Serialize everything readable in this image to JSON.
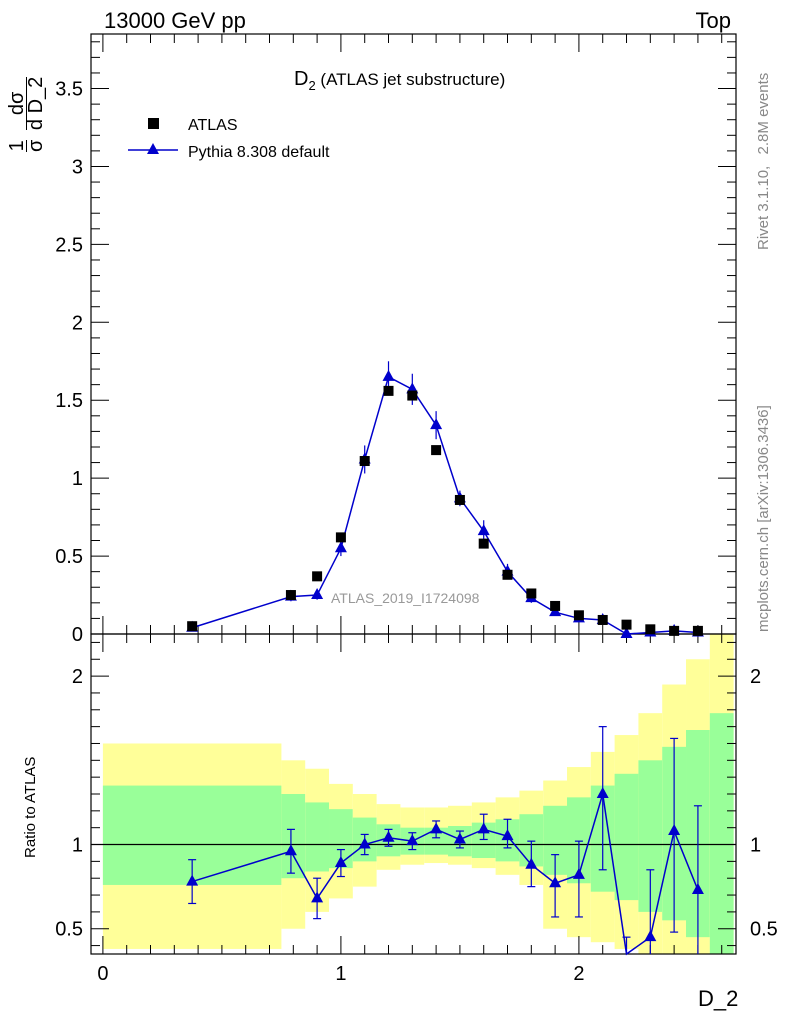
{
  "header": {
    "left": "13000 GeV pp",
    "right": "Top"
  },
  "side_labels": {
    "rivet": "Rivet 3.1.10,   2.8M events",
    "mcplots": "mcplots.cern.ch [arXiv:1306.3436]"
  },
  "chart_data": [
    {
      "type": "scatter",
      "panel": "main",
      "title_main": "D",
      "title_sub": "2",
      "title_rest": " (ATLAS jet substructure)",
      "watermark": "ATLAS_2019_I1724098",
      "ylabel": "dσ/d D_2 · 1/σ",
      "ylim": [
        0,
        3.85
      ],
      "yticks": [
        "0",
        "0.5",
        "1",
        "1.5",
        "2",
        "2.5",
        "3",
        "3.5"
      ],
      "xlim": [
        -0.05,
        2.66
      ],
      "legend": [
        "ATLAS",
        "Pythia 8.308 default"
      ],
      "legend_position": "top-left",
      "series": [
        {
          "name": "ATLAS",
          "x": [
            0.375,
            0.79,
            0.9,
            1.0,
            1.1,
            1.2,
            1.3,
            1.4,
            1.5,
            1.6,
            1.7,
            1.8,
            1.9,
            2.0,
            2.1,
            2.2,
            2.3,
            2.4,
            2.5
          ],
          "y": [
            0.05,
            0.25,
            0.37,
            0.62,
            1.11,
            1.56,
            1.53,
            1.18,
            0.86,
            0.58,
            0.38,
            0.26,
            0.18,
            0.12,
            0.09,
            0.06,
            0.03,
            0.02,
            0.02
          ]
        },
        {
          "name": "Pythia 8.308 default",
          "x": [
            0.375,
            0.79,
            0.9,
            1.0,
            1.1,
            1.2,
            1.3,
            1.4,
            1.5,
            1.6,
            1.7,
            1.8,
            1.9,
            2.0,
            2.1,
            2.2,
            2.3,
            2.4,
            2.5
          ],
          "y": [
            0.04,
            0.24,
            0.25,
            0.55,
            1.12,
            1.65,
            1.57,
            1.34,
            0.87,
            0.66,
            0.4,
            0.23,
            0.14,
            0.1,
            0.09,
            0.0,
            0.01,
            0.02,
            0.01
          ],
          "err": [
            0.005,
            0.03,
            0.03,
            0.05,
            0.09,
            0.1,
            0.1,
            0.09,
            0.05,
            0.07,
            0.05,
            0.03,
            0.02,
            0.02,
            0.02,
            0.02,
            0.01,
            0.01,
            0.01
          ]
        }
      ]
    },
    {
      "type": "line",
      "panel": "ratio",
      "ylabel": "Ratio to ATLAS",
      "xlabel": "D_2",
      "ylim": [
        0.35,
        2.25
      ],
      "xlim": [
        -0.05,
        2.66
      ],
      "yticks": [
        "0.5",
        "1",
        "2"
      ],
      "xticks": [
        "0",
        "1",
        "2"
      ],
      "reference_line": 1,
      "bands": {
        "edges": [
          0.0,
          0.75,
          0.85,
          0.95,
          1.05,
          1.15,
          1.25,
          1.35,
          1.45,
          1.55,
          1.65,
          1.75,
          1.85,
          1.95,
          2.05,
          2.15,
          2.25,
          2.35,
          2.45,
          2.55,
          2.65
        ],
        "green_lo": [
          0.76,
          0.8,
          0.84,
          0.86,
          0.9,
          0.93,
          0.94,
          0.94,
          0.93,
          0.92,
          0.9,
          0.87,
          0.82,
          0.77,
          0.72,
          0.67,
          0.6,
          0.55,
          0.45,
          0.35
        ],
        "green_hi": [
          1.35,
          1.3,
          1.25,
          1.21,
          1.16,
          1.12,
          1.1,
          1.1,
          1.11,
          1.13,
          1.15,
          1.18,
          1.23,
          1.28,
          1.35,
          1.42,
          1.5,
          1.58,
          1.68,
          1.78
        ],
        "yellow_lo": [
          0.38,
          0.5,
          0.6,
          0.68,
          0.75,
          0.85,
          0.88,
          0.89,
          0.88,
          0.86,
          0.82,
          0.76,
          0.5,
          0.45,
          0.42,
          0.38,
          0.35,
          0.35,
          0.35,
          0.35
        ],
        "yellow_hi": [
          1.6,
          1.5,
          1.45,
          1.36,
          1.3,
          1.24,
          1.22,
          1.22,
          1.23,
          1.25,
          1.28,
          1.32,
          1.38,
          1.46,
          1.55,
          1.65,
          1.78,
          1.95,
          2.1,
          2.25
        ]
      },
      "series": [
        {
          "name": "Pythia 8.308 default",
          "x": [
            0.375,
            0.79,
            0.9,
            1.0,
            1.1,
            1.2,
            1.3,
            1.4,
            1.5,
            1.6,
            1.7,
            1.8,
            1.9,
            2.0,
            2.1,
            2.2,
            2.3,
            2.4,
            2.5
          ],
          "y": [
            0.78,
            0.96,
            0.68,
            0.89,
            1.0,
            1.04,
            1.02,
            1.09,
            1.03,
            1.09,
            1.05,
            0.88,
            0.77,
            0.82,
            1.3,
            0.25,
            0.45,
            1.08,
            0.73
          ],
          "err_lo": [
            0.13,
            0.13,
            0.12,
            0.08,
            0.06,
            0.05,
            0.05,
            0.05,
            0.05,
            0.06,
            0.07,
            0.13,
            0.2,
            0.25,
            0.45,
            0.2,
            0.35,
            0.6,
            0.7
          ],
          "err_hi": [
            0.13,
            0.13,
            0.12,
            0.08,
            0.06,
            0.05,
            0.05,
            0.05,
            0.05,
            0.09,
            0.1,
            0.14,
            0.17,
            0.2,
            0.4,
            0.2,
            0.4,
            0.55,
            0.5
          ]
        }
      ]
    }
  ]
}
